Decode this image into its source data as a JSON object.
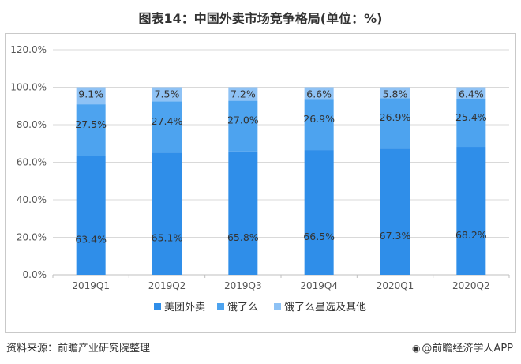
{
  "title": "图表14：中国外卖市场竞争格局(单位：%)",
  "source": "资料来源：前瞻产业研究院整理",
  "brand": "@前瞻经济学人APP",
  "colors": {
    "meituan": "#2f8ee9",
    "eleme": "#4da3ef",
    "others": "#8ec2f5",
    "grid": "#d9d9d9",
    "axis": "#bfbfbf"
  },
  "chart_data": {
    "type": "bar",
    "stacked": true,
    "categories": [
      "2019Q1",
      "2019Q2",
      "2019Q3",
      "2019Q4",
      "2020Q1",
      "2020Q2"
    ],
    "series": [
      {
        "name": "美团外卖",
        "values": [
          63.4,
          65.1,
          65.8,
          66.5,
          67.3,
          68.2
        ],
        "labels": [
          "63.4%",
          "65.1%",
          "65.8%",
          "66.5%",
          "67.3%",
          "68.2%"
        ]
      },
      {
        "name": "饿了么",
        "values": [
          27.5,
          27.4,
          27.0,
          26.9,
          26.9,
          25.4
        ],
        "labels": [
          "27.5%",
          "27.4%",
          "27.0%",
          "26.9%",
          "26.9%",
          "25.4%"
        ]
      },
      {
        "name": "饿了么星选及其他",
        "values": [
          9.1,
          7.5,
          7.2,
          6.6,
          5.8,
          6.4
        ],
        "labels": [
          "9.1%",
          "7.5%",
          "7.2%",
          "6.6%",
          "5.8%",
          "6.4%"
        ]
      }
    ],
    "ylim": [
      0,
      120
    ],
    "yticks": [
      0,
      20,
      40,
      60,
      80,
      100,
      120
    ],
    "ytick_labels": [
      "0.0%",
      "20.0%",
      "40.0%",
      "60.0%",
      "80.0%",
      "100.0%",
      "120.0%"
    ],
    "grid": true,
    "legend_position": "bottom"
  }
}
